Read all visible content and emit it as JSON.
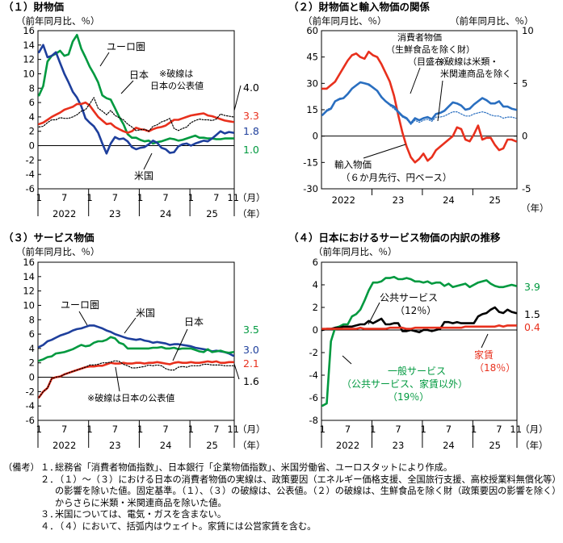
{
  "chart_data": [
    {
      "type": "line",
      "title": "（１）財物価",
      "ylabel": "（前年同月比、％）",
      "ylim": [
        -6,
        16
      ],
      "yticks": [
        "16",
        "14",
        "12",
        "10",
        "8",
        "6",
        "4",
        "2",
        "0",
        "-2",
        "-4",
        "-6"
      ],
      "x_month_labels": [
        "1",
        "7",
        "1",
        "7",
        "1",
        "7",
        "1",
        "7",
        "11"
      ],
      "x_year_labels": [
        "2022",
        "23",
        "24",
        "25"
      ],
      "xaxis_unit": [
        "（月）",
        "（年）"
      ],
      "series": [
        {
          "name": "ユーロ圏",
          "color": "#00993f",
          "dash": false,
          "values": [
            7.0,
            8.3,
            11.7,
            12.5,
            12.8,
            13.2,
            12.5,
            12.7,
            14.5,
            15.4,
            13.5,
            12.3,
            11.0,
            10.0,
            8.8,
            7.0,
            6.6,
            6.4,
            5.2,
            4.0,
            3.0,
            1.6,
            1.1,
            1.1,
            0.8,
            0.6,
            0.7,
            0.3,
            0.5,
            0.6,
            0.8,
            1.0,
            0.9,
            0.7,
            0.8,
            1.0,
            1.2,
            1.4,
            1.1,
            1.1,
            1.0,
            1.0,
            0.9,
            0.9,
            1.0,
            1.0,
            1.0
          ]
        },
        {
          "name": "米国",
          "color": "#1e3f9c",
          "dash": false,
          "values": [
            13.0,
            14.0,
            12.3,
            12.5,
            13.0,
            11.5,
            10.0,
            8.8,
            7.5,
            6.7,
            5.5,
            3.8,
            3.2,
            2.7,
            1.8,
            0.3,
            -1.1,
            0.3,
            1.2,
            0.9,
            1.0,
            0.6,
            -0.2,
            -0.5,
            -0.3,
            -0.2,
            0.2,
            0.7,
            0.4,
            -0.3,
            -0.5,
            -1.0,
            -0.9,
            -0.1,
            0.2,
            0.3,
            0.0,
            0.3,
            0.5,
            0.7,
            0.6,
            1.0,
            1.5,
            2.0,
            1.7,
            1.9,
            1.8
          ]
        },
        {
          "name": "日本",
          "color": "#e8301d",
          "dash": false,
          "values": [
            3.0,
            3.2,
            3.6,
            4.0,
            4.3,
            4.6,
            5.0,
            5.2,
            5.4,
            5.8,
            5.8,
            6.0,
            5.6,
            4.8,
            4.0,
            3.5,
            3.0,
            3.1,
            2.6,
            2.3,
            2.0,
            1.8,
            2.0,
            2.5,
            2.3,
            2.2,
            2.0,
            2.3,
            2.5,
            2.6,
            2.8,
            3.2,
            3.6,
            3.6,
            3.8,
            4.0,
            4.2,
            4.3,
            4.4,
            4.5,
            4.2,
            4.1,
            3.9,
            3.7,
            3.5,
            3.4,
            3.3
          ]
        },
        {
          "name": "日本の公表値",
          "color": "#000000",
          "dash": true,
          "values": [
            2.6,
            2.7,
            3.2,
            3.6,
            3.6,
            3.9,
            3.8,
            3.8,
            4.0,
            4.3,
            4.8,
            5.0,
            5.8,
            6.7,
            5.2,
            4.8,
            4.3,
            4.9,
            4.2,
            3.9,
            3.6,
            3.0,
            2.6,
            2.1,
            2.2,
            2.3,
            2.0,
            2.7,
            2.9,
            3.3,
            3.5,
            3.8,
            2.4,
            2.1,
            2.4,
            2.6,
            3.2,
            3.5,
            3.7,
            3.6,
            3.6,
            3.5,
            3.7,
            4.4,
            4.2,
            4.1,
            4.0
          ]
        }
      ],
      "end_labels": [
        "4.0",
        "3.3",
        "1.8",
        "1.0"
      ],
      "annotations": [
        "ユーロ圏",
        "日本",
        "※破線は",
        "日本の公表値",
        "米国"
      ]
    },
    {
      "type": "line",
      "title": "（２）財物価と輸入物価の関係",
      "ylabel": "（前年同月比、％）",
      "y2label": "（前年同月比、％）",
      "ylim": [
        -30,
        60
      ],
      "y2lim": [
        -5,
        10
      ],
      "yticks": [
        "60",
        "45",
        "30",
        "15",
        "0",
        "-15",
        "-30"
      ],
      "y2ticks": [
        "10",
        "5",
        "0",
        "-5"
      ],
      "x_year_labels": [
        "2022",
        "23",
        "24",
        "25"
      ],
      "xaxis_unit": "（年）",
      "series": [
        {
          "name": "輸入物価",
          "sub": "（６か月先行、円ベース）",
          "color": "#e8301d",
          "axis": "left",
          "dash": false,
          "values": [
            27,
            27,
            29,
            31,
            35,
            39,
            43,
            46,
            47,
            45,
            44,
            48,
            46,
            45,
            41,
            36,
            31,
            23,
            12,
            2,
            -6,
            -12,
            -15,
            -13,
            -10,
            -14,
            -12,
            -8,
            -6,
            -4,
            -2,
            0,
            5,
            4,
            -2,
            -3,
            1,
            6,
            -2,
            -1,
            -1,
            -5,
            -8,
            -7,
            -2,
            -2,
            -3
          ]
        },
        {
          "name": "消費者物価",
          "sub": "（生鮮食品を除く財）",
          "sub2": "（目盛右）",
          "color": "#2a6fc0",
          "axis": "right",
          "dash": false,
          "values": [
            2.0,
            2.4,
            2.6,
            3.3,
            3.5,
            3.6,
            4.0,
            4.5,
            4.8,
            5.1,
            5.0,
            4.9,
            4.6,
            4.3,
            3.7,
            3.3,
            3.0,
            2.8,
            2.3,
            1.9,
            1.7,
            1.2,
            1.7,
            1.5,
            1.7,
            1.8,
            1.6,
            2.1,
            2.2,
            2.4,
            2.8,
            3.2,
            3.1,
            2.9,
            2.5,
            2.6,
            3.0,
            3.3,
            3.6,
            3.4,
            3.1,
            3.1,
            3.3,
            2.8,
            2.8,
            2.6,
            2.5
          ]
        },
        {
          "name": "米類・米関連商品を除く",
          "color": "#2a6fc0",
          "axis": "right",
          "dash": true,
          "values": [
            2.0,
            2.5,
            2.7,
            3.3,
            3.6,
            3.6,
            4.0,
            4.5,
            4.8,
            5.1,
            5.0,
            4.8,
            4.6,
            4.3,
            3.8,
            3.3,
            2.9,
            2.6,
            2.2,
            1.8,
            1.6,
            1.1,
            1.5,
            1.3,
            1.5,
            1.6,
            1.4,
            1.8,
            1.8,
            1.9,
            2.1,
            2.3,
            2.3,
            2.1,
            1.9,
            1.9,
            2.1,
            2.2,
            2.3,
            2.2,
            2.0,
            1.9,
            1.9,
            1.7,
            1.8,
            1.8,
            1.7
          ]
        }
      ],
      "annotations": [
        "※破線は米類・",
        "米関連商品を除く"
      ]
    },
    {
      "type": "line",
      "title": "（３）サービス物価",
      "ylabel": "（前年同月比、％）",
      "ylim": [
        -6,
        16
      ],
      "yticks": [
        "16",
        "14",
        "12",
        "10",
        "8",
        "6",
        "4",
        "2",
        "0",
        "-2",
        "-4",
        "-6"
      ],
      "x_month_labels": [
        "1",
        "7",
        "1",
        "7",
        "1",
        "7",
        "1",
        "7",
        "11"
      ],
      "x_year_labels": [
        "2022",
        "23",
        "24",
        "25"
      ],
      "xaxis_unit": [
        "（月）",
        "（年）"
      ],
      "series": [
        {
          "name": "米国",
          "color": "#1e3f9c",
          "dash": false,
          "values": [
            4.2,
            4.5,
            5.0,
            5.2,
            5.5,
            5.8,
            6.0,
            6.2,
            6.5,
            6.7,
            6.8,
            7.0,
            7.2,
            7.2,
            7.0,
            6.8,
            6.5,
            6.3,
            6.0,
            5.8,
            5.6,
            5.4,
            5.3,
            5.2,
            5.3,
            5.1,
            5.0,
            4.8,
            4.9,
            4.8,
            4.7,
            4.5,
            4.6,
            4.6,
            4.5,
            4.4,
            4.3,
            4.1,
            4.0,
            3.9,
            3.8,
            3.6,
            3.7,
            3.6,
            3.5,
            3.3,
            3.0
          ]
        },
        {
          "name": "ユーロ圏",
          "color": "#00993f",
          "dash": false,
          "values": [
            2.3,
            2.5,
            2.8,
            2.9,
            3.3,
            3.4,
            3.5,
            3.7,
            3.9,
            4.2,
            4.5,
            4.3,
            4.4,
            4.8,
            5.0,
            5.0,
            5.2,
            5.6,
            5.4,
            4.8,
            4.6,
            4.0,
            4.0,
            4.0,
            4.0,
            4.0,
            4.0,
            4.1,
            4.1,
            4.2,
            4.0,
            4.0,
            4.1,
            3.9,
            4.0,
            4.0,
            4.0,
            3.8,
            3.6,
            3.5,
            3.9,
            3.5,
            3.6,
            3.7,
            3.5,
            3.4,
            3.5
          ]
        },
        {
          "name": "日本",
          "color": "#e8301d",
          "dash": false,
          "values": [
            -2.8,
            -2.0,
            -1.5,
            -0.2,
            0.0,
            0.1,
            0.4,
            0.6,
            0.8,
            1.0,
            1.2,
            1.4,
            1.5,
            1.5,
            1.6,
            1.6,
            1.8,
            2.0,
            1.9,
            1.9,
            2.0,
            1.9,
            1.9,
            2.0,
            2.0,
            1.9,
            2.0,
            2.0,
            2.1,
            2.0,
            1.9,
            1.8,
            2.0,
            2.1,
            2.0,
            2.0,
            2.1,
            2.0,
            2.0,
            2.1,
            2.2,
            2.1,
            2.2,
            2.0,
            2.0,
            2.1,
            2.1
          ]
        },
        {
          "name": "日本の公表値",
          "color": "#000000",
          "dash": true,
          "values": [
            -2.8,
            -2.0,
            -1.5,
            -0.2,
            0.0,
            0.1,
            0.4,
            0.6,
            0.8,
            1.0,
            1.2,
            1.4,
            1.7,
            1.7,
            1.8,
            2.0,
            2.0,
            2.1,
            2.3,
            2.2,
            1.8,
            1.6,
            1.3,
            1.3,
            1.4,
            1.5,
            1.7,
            1.6,
            1.7,
            1.6,
            1.2,
            1.0,
            1.0,
            1.4,
            1.5,
            1.4,
            1.6,
            1.6,
            1.6,
            1.8,
            1.8,
            1.7,
            1.7,
            1.7,
            1.6,
            1.6,
            1.6
          ]
        }
      ],
      "end_labels": [
        "3.5",
        "3.0",
        "2.1",
        "1.6"
      ],
      "annotations": [
        "ユーロ圏",
        "米国",
        "日本",
        "※破線は日本の公表値"
      ]
    },
    {
      "type": "line",
      "title": "（４）日本におけるサービス物価の内訳の推移",
      "ylabel": "（前年同月比、％）",
      "ylim": [
        -8,
        6
      ],
      "yticks": [
        "6",
        "4",
        "2",
        "0",
        "-2",
        "-4",
        "-6",
        "-8"
      ],
      "x_month_labels": [
        "1",
        "7",
        "1",
        "7",
        "1",
        "7",
        "1",
        "7",
        "11"
      ],
      "x_year_labels": [
        "2022",
        "23",
        "24",
        "25"
      ],
      "xaxis_unit": [
        "（月）",
        "（年）"
      ],
      "series": [
        {
          "name": "一般サービス",
          "sub": "（公共サービス、家賃以外）",
          "sub2": "（19％）",
          "color": "#00993f",
          "dash": false,
          "values": [
            -6.7,
            -6.5,
            -1.0,
            0.2,
            0.3,
            0.5,
            0.5,
            1.2,
            1.4,
            1.8,
            2.6,
            3.5,
            4.2,
            4.2,
            4.3,
            4.6,
            4.6,
            4.7,
            4.5,
            4.5,
            4.6,
            4.5,
            4.3,
            4.3,
            4.2,
            4.3,
            4.1,
            4.2,
            4.2,
            3.9,
            4.1,
            3.8,
            3.9,
            4.0,
            4.1,
            3.8,
            4.0,
            4.2,
            4.3,
            4.4,
            4.1,
            3.9,
            3.8,
            3.8,
            3.9,
            4.0,
            3.9
          ]
        },
        {
          "name": "公共サービス",
          "sub": "（12％）",
          "color": "#000000",
          "dash": false,
          "values": [
            0.0,
            0.1,
            0.1,
            0.2,
            0.2,
            0.3,
            0.3,
            0.3,
            0.4,
            0.5,
            0.5,
            0.8,
            0.6,
            0.8,
            1.0,
            0.5,
            0.5,
            0.6,
            0.6,
            -0.1,
            -0.1,
            0.0,
            -0.1,
            -0.2,
            0.0,
            0.0,
            -0.1,
            0.0,
            0.1,
            0.7,
            0.7,
            0.6,
            0.7,
            0.6,
            0.6,
            0.6,
            0.6,
            1.2,
            1.4,
            1.5,
            1.8,
            2.0,
            1.6,
            1.5,
            1.8,
            1.6,
            1.5
          ]
        },
        {
          "name": "家賃",
          "sub": "（18％）",
          "color": "#e8301d",
          "dash": false,
          "values": [
            0.1,
            0.1,
            0.1,
            0.1,
            0.1,
            0.1,
            0.1,
            0.1,
            0.1,
            0.2,
            0.1,
            0.1,
            0.1,
            0.1,
            0.1,
            0.1,
            0.2,
            0.2,
            0.2,
            0.2,
            0.1,
            0.1,
            0.2,
            0.2,
            0.2,
            0.2,
            0.2,
            0.2,
            0.2,
            0.2,
            0.2,
            0.2,
            0.2,
            0.2,
            0.3,
            0.3,
            0.3,
            0.3,
            0.3,
            0.3,
            0.3,
            0.3,
            0.4,
            0.3,
            0.4,
            0.4,
            0.4
          ]
        }
      ],
      "end_labels": [
        "3.9",
        "1.5",
        "0.4"
      ]
    }
  ],
  "notes": {
    "heading": "（備考）",
    "items": [
      {
        "num": "１．",
        "text": "総務省「消費者物価指数」、日本銀行「企業物価指数」、米国労働省、ユーロスタットにより作成。"
      },
      {
        "num": "２．",
        "text": "（１）～（３）における日本の消費者物価の実線は、政策要因（エネルギー価格支援、全国旅行支援、高校授業料無償化等）の影響を除いた値。固定基準。（１）、（３）の破線は、公表値。（２）の破線は、生鮮食品を除く財（政策要因の影響を除く）からさらに米類・米関連商品を除いた値。"
      },
      {
        "num": "３．",
        "text": "米国については、電気・ガスを含まない。"
      },
      {
        "num": "４．",
        "text": "（４）において、括弧内はウェイト。家賃には公営家賃を含む。"
      }
    ]
  }
}
